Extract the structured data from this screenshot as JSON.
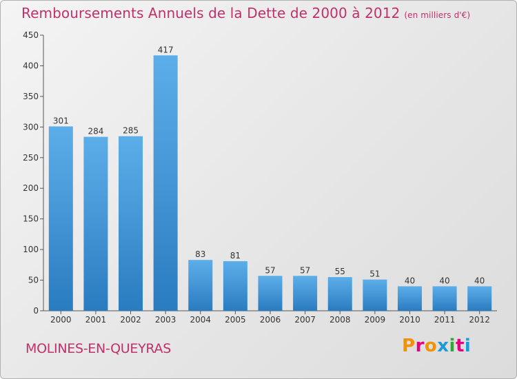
{
  "header": {
    "title": "Remboursements Annuels de la Dette de 2000 à 2012",
    "unit": "(en milliers d'€)"
  },
  "footer": {
    "commune": "MOLINES-EN-QUEYRAS",
    "logo_text": "Proxiti",
    "logo_colors": [
      "#f39200",
      "#e6007e",
      "#f39200",
      "#1d9bd7",
      "#2ea836",
      "#e6007e",
      "#1d9bd7"
    ]
  },
  "chart_data": {
    "type": "bar",
    "title": "Remboursements Annuels de la Dette de 2000 à 2012",
    "subtitle": "(en milliers d'€)",
    "categories": [
      "2000",
      "2001",
      "2002",
      "2003",
      "2004",
      "2005",
      "2006",
      "2007",
      "2008",
      "2009",
      "2010",
      "2011",
      "2012"
    ],
    "values": [
      301,
      284,
      285,
      417,
      83,
      81,
      57,
      57,
      55,
      51,
      40,
      40,
      40
    ],
    "ylim": [
      0,
      450
    ],
    "yticks": [
      0,
      50,
      100,
      150,
      200,
      250,
      300,
      350,
      400,
      450
    ],
    "grid": false,
    "bar_color_top": "#5caee9",
    "bar_color_bottom": "#2a7cc1"
  }
}
